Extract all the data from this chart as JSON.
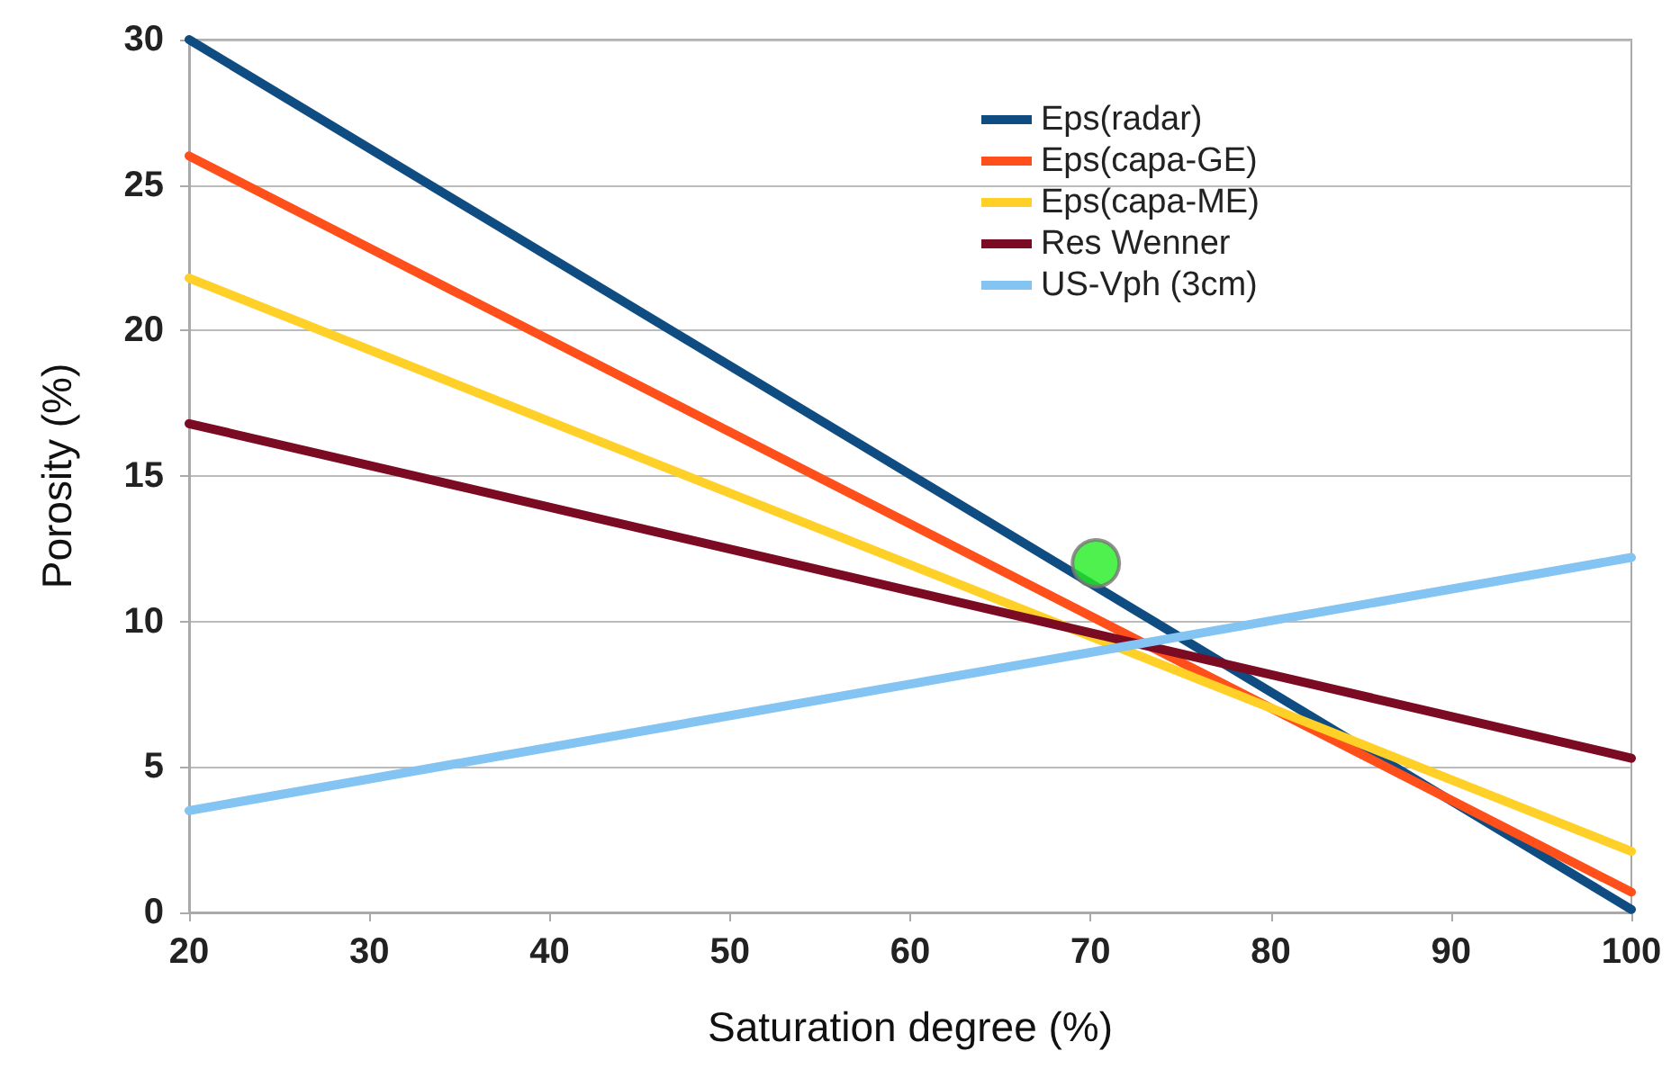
{
  "chart_data": {
    "type": "line",
    "xlabel": "Saturation degree (%)",
    "ylabel": "Porosity (%)",
    "x": [
      20,
      100
    ],
    "xlim": [
      20,
      100
    ],
    "xticks": [
      20,
      30,
      40,
      50,
      60,
      70,
      80,
      90,
      100
    ],
    "ylim": [
      0,
      30
    ],
    "yticks": [
      0,
      5,
      10,
      15,
      20,
      25,
      30
    ],
    "grid": "y",
    "legend": "top right",
    "marker": "none",
    "line_style": "solid",
    "series": [
      {
        "name": "Eps(radar)",
        "color": "#0f4c81",
        "values": [
          30,
          0.1
        ]
      },
      {
        "name": "Eps(capa-GE)",
        "color": "#ff4f1a",
        "values": [
          26,
          0.7
        ]
      },
      {
        "name": "Eps(capa-ME)",
        "color": "#ffd028",
        "values": [
          21.8,
          2.1
        ]
      },
      {
        "name": "Res Wenner",
        "color": "#7b0b23",
        "values": [
          16.8,
          5.3
        ]
      },
      {
        "name": "US-Vph (3cm)",
        "color": "#83c4f2",
        "values": [
          3.5,
          12.2
        ]
      },
      {
        "type": "scatter",
        "marker": "circle",
        "color": "#22ee22",
        "x": [
          70.3
        ],
        "values": [
          12
        ]
      }
    ]
  }
}
